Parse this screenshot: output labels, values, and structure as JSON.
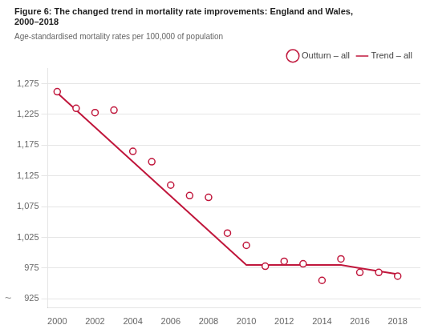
{
  "chart_data": {
    "type": "line",
    "title": [
      "Figure 6: The changed trend in mortality rate improvements: England and Wales,",
      "2000–2018"
    ],
    "ylabel": "Age-standardised mortality rates per 100,000 of population",
    "x": [
      2000,
      2001,
      2002,
      2003,
      2004,
      2005,
      2006,
      2007,
      2008,
      2009,
      2010,
      2011,
      2012,
      2013,
      2014,
      2015,
      2016,
      2017,
      2018
    ],
    "series": [
      {
        "name": "Outturn – all",
        "color": "#c0173c",
        "marker": "circle",
        "line_style": "none",
        "values": [
          1262,
          1235,
          1228,
          1232,
          1165,
          1148,
          1110,
          1093,
          1090,
          1032,
          1012,
          978,
          986,
          982,
          955,
          990,
          968,
          968,
          962
        ]
      },
      {
        "name": "Trend – all",
        "color": "#c0173c",
        "marker": "none",
        "line_style": "solid",
        "values": [
          1260,
          1232,
          1204,
          1176,
          1148,
          1120,
          1092,
          1064,
          1036,
          1008,
          980,
          980,
          980,
          980,
          980,
          980,
          975,
          970,
          965
        ]
      }
    ],
    "xlim": [
      1999.5,
      2019.2
    ],
    "xticks": [
      2000,
      2002,
      2004,
      2006,
      2008,
      2010,
      2012,
      2014,
      2016,
      2018
    ],
    "ylim": [
      910,
      1300
    ],
    "yticks": [
      925,
      975,
      {
        "value": 1025,
        "label": "1,025"
      },
      {
        "value": 1075,
        "label": "1,075"
      },
      {
        "value": 1125,
        "label": "1,125"
      },
      {
        "value": 1175,
        "label": "1,175"
      },
      {
        "value": 1225,
        "label": "1,225"
      },
      {
        "value": 1275,
        "label": "1,275"
      }
    ],
    "grid": "y",
    "legend": "top right",
    "annotations": [
      {
        "text": "~",
        "y": 925
      }
    ]
  }
}
